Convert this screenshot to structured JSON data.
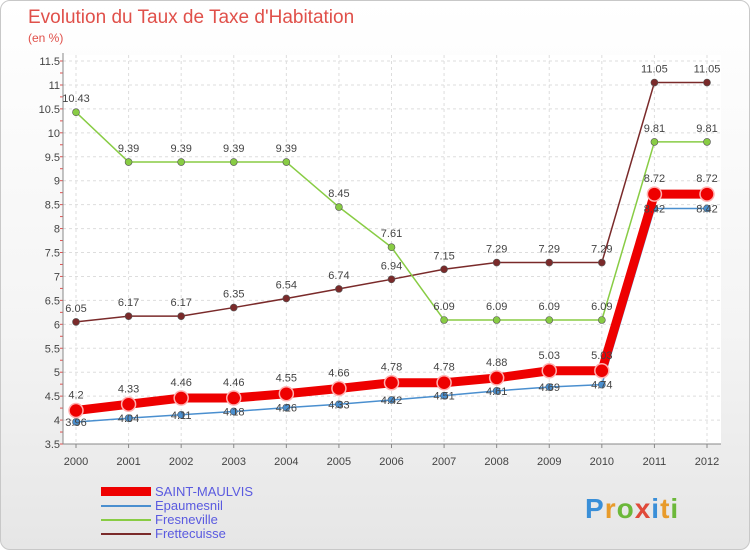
{
  "header": {
    "title": "Evolution du Taux de Taxe d'Habitation",
    "subtitle": "(en %)"
  },
  "logo": {
    "letters": [
      "P",
      "r",
      "o",
      "x",
      "i",
      "t",
      "i"
    ],
    "colors": [
      "#3a8fd8",
      "#e89b2a",
      "#6cb83a",
      "#e04a3a",
      "#3a8fd8",
      "#e89b2a",
      "#6cb83a"
    ]
  },
  "chart_data": {
    "type": "line",
    "title": "Evolution du Taux de Taxe d'Habitation",
    "ylabel": "(en %)",
    "xlabel": "",
    "x": [
      "2000",
      "2001",
      "2002",
      "2003",
      "2004",
      "2005",
      "2006",
      "2007",
      "2008",
      "2009",
      "2010",
      "2011",
      "2012"
    ],
    "ylim": [
      3.5,
      11.5
    ],
    "yticks": [
      "3.5",
      "4",
      "4.5",
      "5",
      "5.5",
      "6",
      "6.5",
      "7",
      "7.5",
      "8",
      "8.5",
      "9",
      "9.5",
      "10",
      "10.5",
      "11",
      "11.5"
    ],
    "grid": true,
    "legend": "bottom-left",
    "series": [
      {
        "name": "SAINT-MAULVIS",
        "color": "#ee0000",
        "values": [
          4.2,
          4.33,
          4.46,
          4.46,
          4.55,
          4.66,
          4.78,
          4.78,
          4.88,
          5.03,
          5.03,
          8.72,
          8.72
        ],
        "labels": [
          "4.2",
          "4.33",
          "4.46",
          "4.46",
          "4.55",
          "4.66",
          "4.78",
          "4.78",
          "4.88",
          "5.03",
          "5.03",
          "8.72",
          "8.72"
        ]
      },
      {
        "name": "Epaumesnil",
        "color": "#4a8fcf",
        "values": [
          3.96,
          4.04,
          4.11,
          4.18,
          4.26,
          4.33,
          4.42,
          4.51,
          4.61,
          4.69,
          4.74,
          8.42,
          8.42
        ],
        "labels": [
          "3.96",
          "4.04",
          "4.11",
          "4.18",
          "4.26",
          "4.33",
          "4.42",
          "4.51",
          "4.61",
          "4.69",
          "4.74",
          "8.42",
          "8.42"
        ]
      },
      {
        "name": "Fresneville",
        "color": "#88cc44",
        "values": [
          10.43,
          9.39,
          9.39,
          9.39,
          9.39,
          8.45,
          7.61,
          6.09,
          6.09,
          6.09,
          6.09,
          9.81,
          9.81
        ],
        "labels": [
          "10.43",
          "9.39",
          "9.39",
          "9.39",
          "9.39",
          "8.45",
          "7.61",
          "6.09",
          "6.09",
          "6.09",
          "6.09",
          "9.81",
          "9.81"
        ]
      },
      {
        "name": "Frettecuisse",
        "color": "#7a2a2a",
        "values": [
          6.05,
          6.17,
          6.17,
          6.35,
          6.54,
          6.74,
          6.94,
          7.15,
          7.29,
          7.29,
          7.29,
          11.05,
          11.05
        ],
        "labels": [
          "6.05",
          "6.17",
          "6.17",
          "6.35",
          "6.54",
          "6.74",
          "6.94",
          "7.15",
          "7.29",
          "7.29",
          "7.29",
          "11.05",
          "11.05"
        ]
      }
    ]
  }
}
